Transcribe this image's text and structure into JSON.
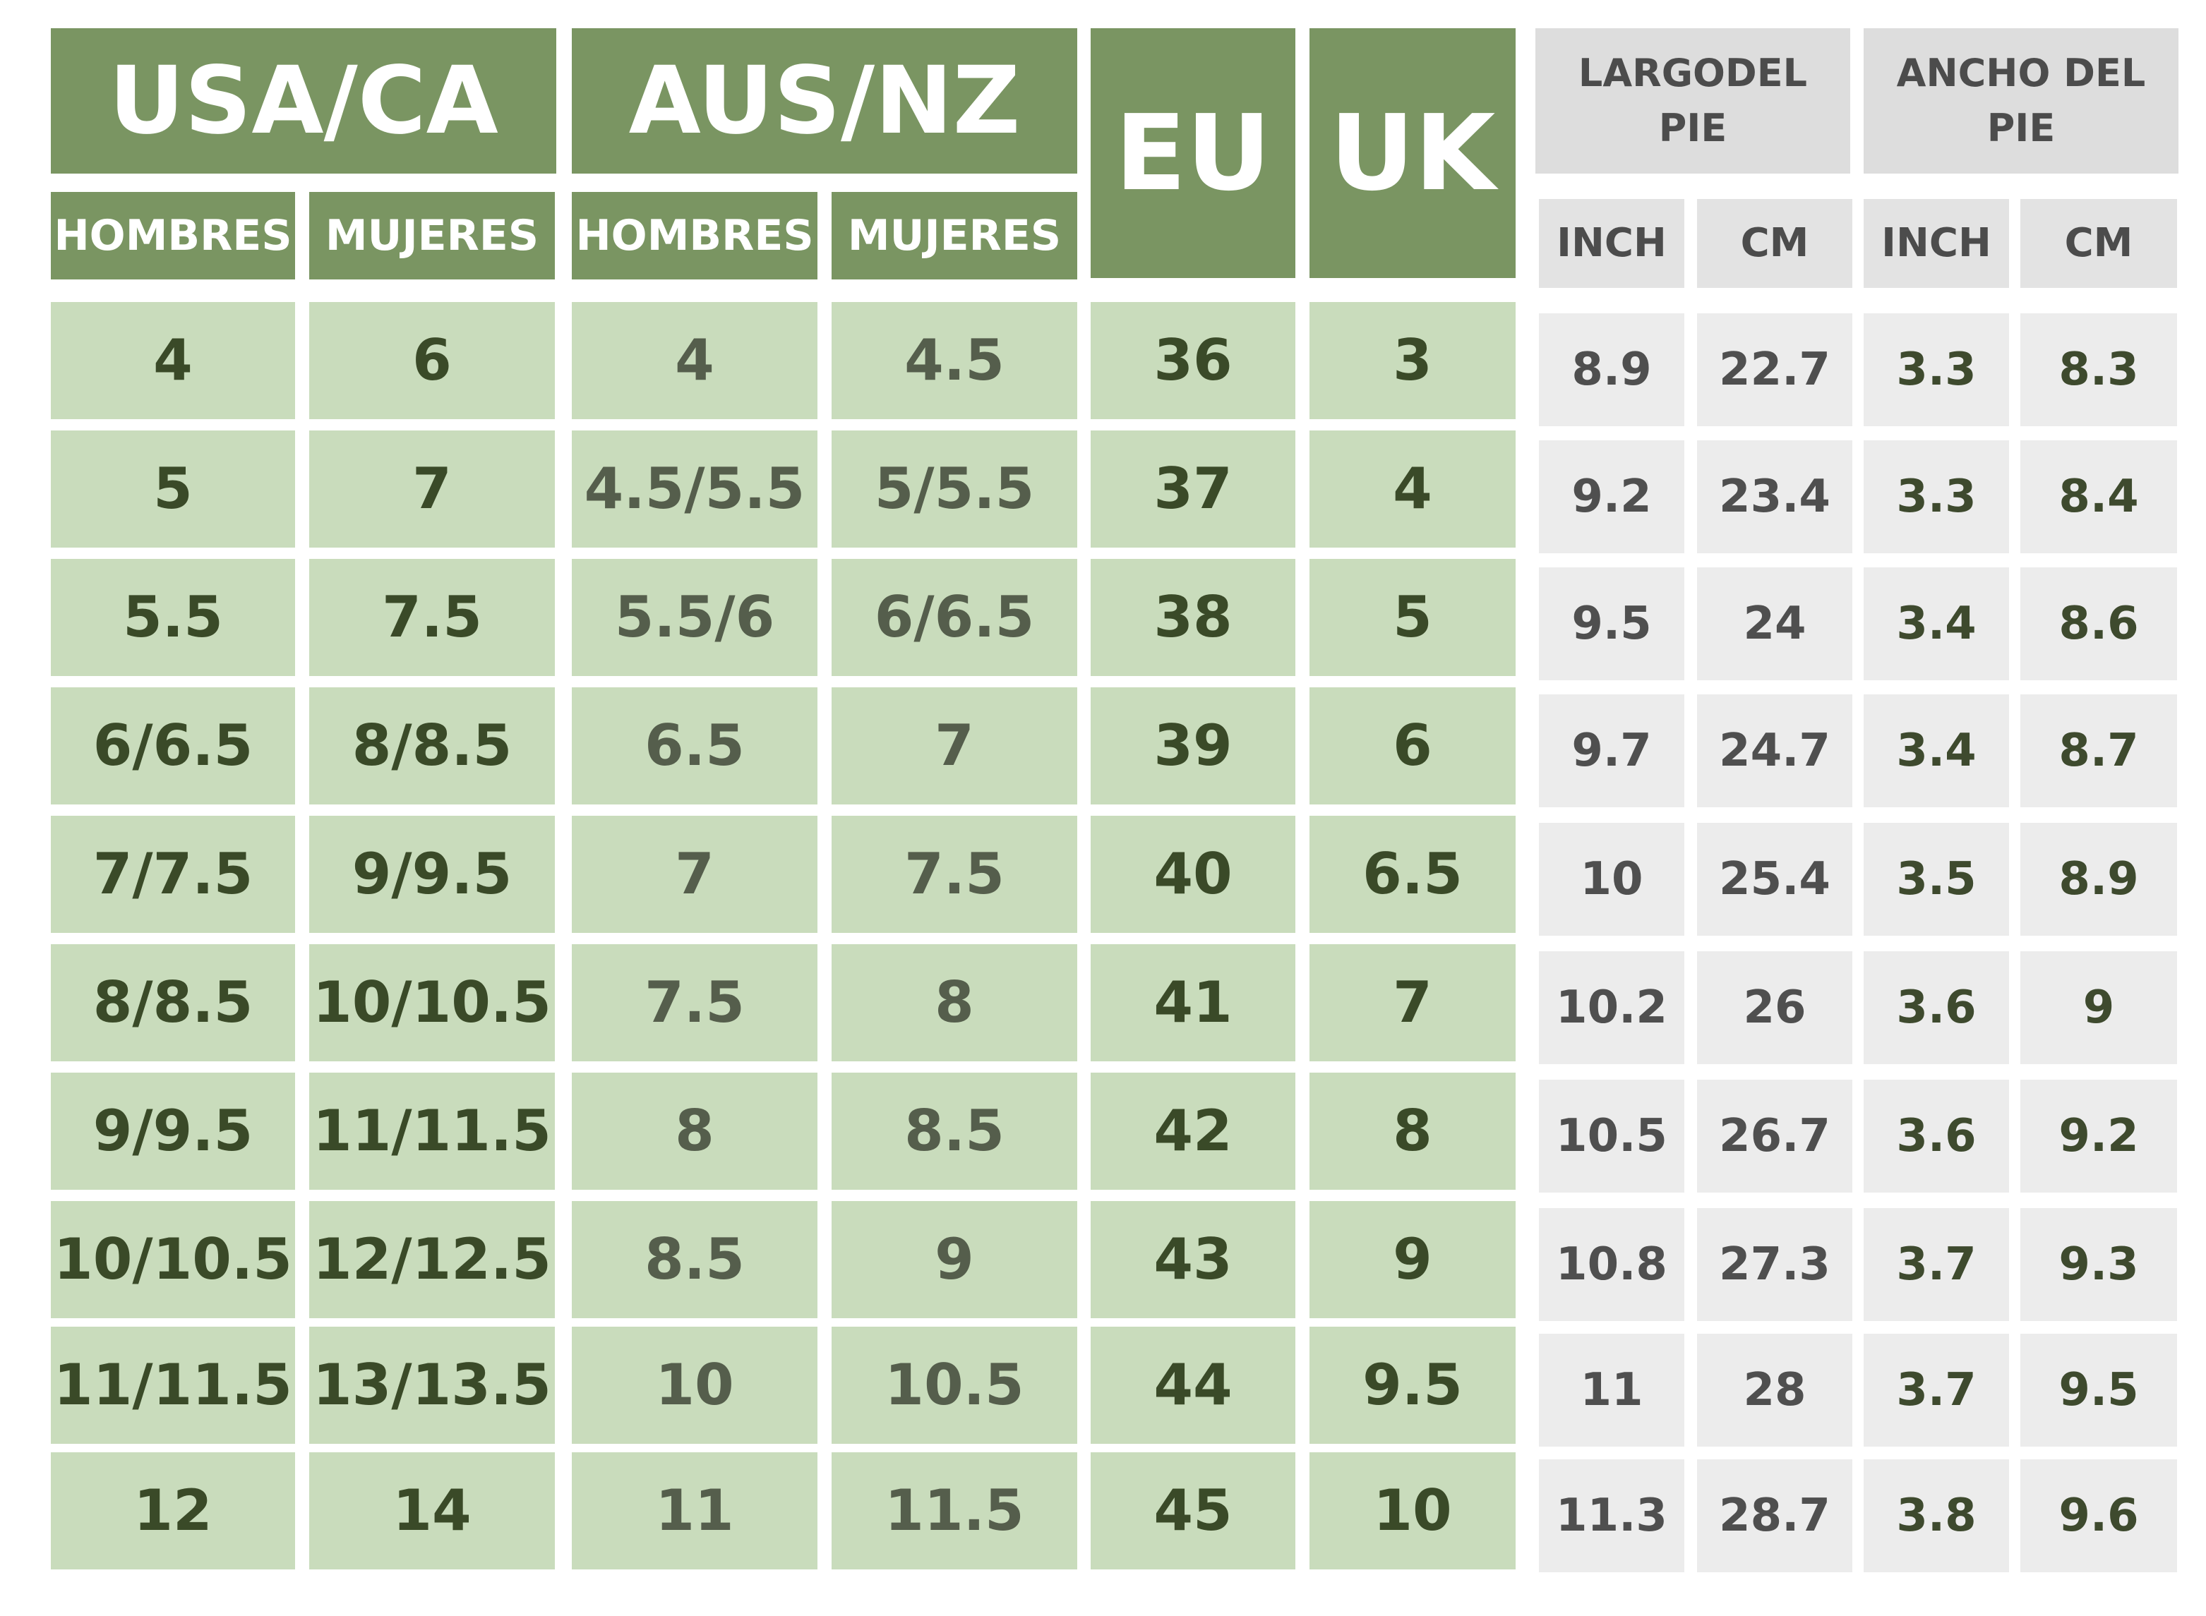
{
  "headers": {
    "usa_ca": "USA/CA",
    "aus_nz": "AUS/NZ",
    "eu": "EU",
    "uk": "UK",
    "foot_length": "LARGODEL PIE",
    "foot_width": "ANCHO DEL PIE",
    "men": "HOMBRES",
    "women": "MUJERES",
    "inch": "INCH",
    "cm": "CM"
  },
  "rows": [
    {
      "usa_men": "4",
      "usa_women": "6",
      "aus_men": "4",
      "aus_women": "4.5",
      "eu": "36",
      "uk": "3",
      "len_inch": "8.9",
      "len_cm": "22.7",
      "wid_inch": "3.3",
      "wid_cm": "8.3"
    },
    {
      "usa_men": "5",
      "usa_women": "7",
      "aus_men": "4.5/5.5",
      "aus_women": "5/5.5",
      "eu": "37",
      "uk": "4",
      "len_inch": "9.2",
      "len_cm": "23.4",
      "wid_inch": "3.3",
      "wid_cm": "8.4"
    },
    {
      "usa_men": "5.5",
      "usa_women": "7.5",
      "aus_men": "5.5/6",
      "aus_women": "6/6.5",
      "eu": "38",
      "uk": "5",
      "len_inch": "9.5",
      "len_cm": "24",
      "wid_inch": "3.4",
      "wid_cm": "8.6"
    },
    {
      "usa_men": "6/6.5",
      "usa_women": "8/8.5",
      "aus_men": "6.5",
      "aus_women": "7",
      "eu": "39",
      "uk": "6",
      "len_inch": "9.7",
      "len_cm": "24.7",
      "wid_inch": "3.4",
      "wid_cm": "8.7"
    },
    {
      "usa_men": "7/7.5",
      "usa_women": "9/9.5",
      "aus_men": "7",
      "aus_women": "7.5",
      "eu": "40",
      "uk": "6.5",
      "len_inch": "10",
      "len_cm": "25.4",
      "wid_inch": "3.5",
      "wid_cm": "8.9"
    },
    {
      "usa_men": "8/8.5",
      "usa_women": "10/10.5",
      "aus_men": "7.5",
      "aus_women": "8",
      "eu": "41",
      "uk": "7",
      "len_inch": "10.2",
      "len_cm": "26",
      "wid_inch": "3.6",
      "wid_cm": "9"
    },
    {
      "usa_men": "9/9.5",
      "usa_women": "11/11.5",
      "aus_men": "8",
      "aus_women": "8.5",
      "eu": "42",
      "uk": "8",
      "len_inch": "10.5",
      "len_cm": "26.7",
      "wid_inch": "3.6",
      "wid_cm": "9.2"
    },
    {
      "usa_men": "10/10.5",
      "usa_women": "12/12.5",
      "aus_men": "8.5",
      "aus_women": "9",
      "eu": "43",
      "uk": "9",
      "len_inch": "10.8",
      "len_cm": "27.3",
      "wid_inch": "3.7",
      "wid_cm": "9.3"
    },
    {
      "usa_men": "11/11.5",
      "usa_women": "13/13.5",
      "aus_men": "10",
      "aus_women": "10.5",
      "eu": "44",
      "uk": "9.5",
      "len_inch": "11",
      "len_cm": "28",
      "wid_inch": "3.7",
      "wid_cm": "9.5"
    },
    {
      "usa_men": "12",
      "usa_women": "14",
      "aus_men": "11",
      "aus_women": "11.5",
      "eu": "45",
      "uk": "10",
      "len_inch": "11.3",
      "len_cm": "28.7",
      "wid_inch": "3.8",
      "wid_cm": "9.6"
    }
  ],
  "colors": {
    "header_green": "#7a9562",
    "cell_green": "#c9dcbc",
    "header_gray": "#dddddd",
    "cell_gray": "#ececec"
  }
}
